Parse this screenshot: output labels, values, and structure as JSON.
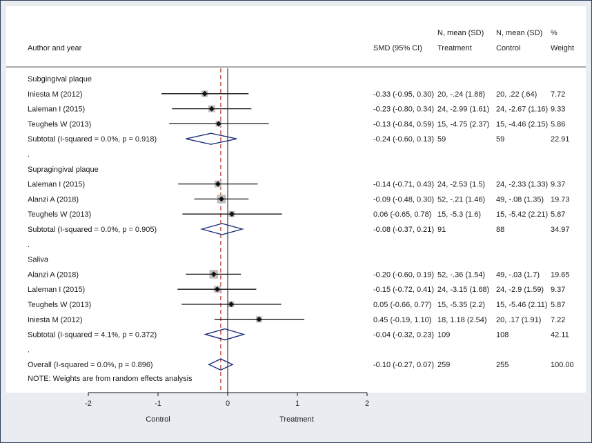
{
  "header": {
    "author_col": "Author and year",
    "smd_col": "SMD (95% CI)",
    "treat_top": "N, mean (SD)",
    "treat_bottom": "Treatment",
    "ctrl_top": "N, mean (SD)",
    "ctrl_bottom": "Control",
    "weight_top": "%",
    "weight_bottom": "Weight"
  },
  "chart_data": {
    "type": "forest",
    "measure": "SMD",
    "xlim": [
      -2,
      2
    ],
    "xticks": [
      "-2",
      "-1",
      "0",
      "1",
      "2"
    ],
    "xtick_values": [
      -2,
      -1,
      0,
      1,
      2
    ],
    "overall_effect_line": -0.1,
    "xlabel_left": "Control",
    "xlabel_right": "Treatment",
    "rows": [
      {
        "kind": "group",
        "label": "Subgingival plaque"
      },
      {
        "kind": "study",
        "label": "Iniesta M (2012)",
        "smd": -0.33,
        "lo": -0.95,
        "hi": 0.3,
        "ci_text": "-0.33 (-0.95, 0.30)",
        "treat": "20, -.24 (1.88)",
        "ctrl": "20, .22 (.64)",
        "weight": "7.72"
      },
      {
        "kind": "study",
        "label": "Laleman I (2015)",
        "smd": -0.23,
        "lo": -0.8,
        "hi": 0.34,
        "ci_text": "-0.23 (-0.80, 0.34)",
        "treat": "24, -2.99 (1.61)",
        "ctrl": "24, -2.67 (1.16)",
        "weight": "9.33"
      },
      {
        "kind": "study",
        "label": "Teughels W (2013)",
        "smd": -0.13,
        "lo": -0.84,
        "hi": 0.59,
        "ci_text": "-0.13 (-0.84, 0.59)",
        "treat": "15, -4.75 (2.37)",
        "ctrl": "15, -4.46 (2.15)",
        "weight": "5.86"
      },
      {
        "kind": "subtotal",
        "label": "Subtotal  (I-squared = 0.0%, p = 0.918)",
        "smd": -0.24,
        "lo": -0.6,
        "hi": 0.13,
        "ci_text": "-0.24 (-0.60, 0.13)",
        "treat": "59",
        "ctrl": "59",
        "weight": "22.91"
      },
      {
        "kind": "dot",
        "label": "."
      },
      {
        "kind": "group",
        "label": "Supragingival plaque"
      },
      {
        "kind": "study",
        "label": "Laleman I (2015)",
        "smd": -0.14,
        "lo": -0.71,
        "hi": 0.43,
        "ci_text": "-0.14 (-0.71, 0.43)",
        "treat": "24, -2.53 (1.5)",
        "ctrl": "24, -2.33 (1.33)",
        "weight": "9.37"
      },
      {
        "kind": "study",
        "label": "Alanzi A (2018)",
        "smd": -0.09,
        "lo": -0.48,
        "hi": 0.3,
        "ci_text": "-0.09 (-0.48, 0.30)",
        "treat": "52, -.21 (1.46)",
        "ctrl": "49, -.08 (1.35)",
        "weight": "19.73"
      },
      {
        "kind": "study",
        "label": "Teughels W (2013)",
        "smd": 0.06,
        "lo": -0.65,
        "hi": 0.78,
        "ci_text": "0.06 (-0.65, 0.78)",
        "treat": "15, -5.3 (1.6)",
        "ctrl": "15, -5.42 (2.21)",
        "weight": "5.87"
      },
      {
        "kind": "subtotal",
        "label": "Subtotal  (I-squared = 0.0%, p = 0.905)",
        "smd": -0.08,
        "lo": -0.37,
        "hi": 0.21,
        "ci_text": "-0.08 (-0.37, 0.21)",
        "treat": "91",
        "ctrl": "88",
        "weight": "34.97"
      },
      {
        "kind": "dot",
        "label": "."
      },
      {
        "kind": "group",
        "label": "Saliva"
      },
      {
        "kind": "study",
        "label": "Alanzi A (2018)",
        "smd": -0.2,
        "lo": -0.6,
        "hi": 0.19,
        "ci_text": "-0.20 (-0.60, 0.19)",
        "treat": "52, -.36 (1.54)",
        "ctrl": "49, -.03 (1.7)",
        "weight": "19.65"
      },
      {
        "kind": "study",
        "label": "Laleman I (2015)",
        "smd": -0.15,
        "lo": -0.72,
        "hi": 0.41,
        "ci_text": "-0.15 (-0.72, 0.41)",
        "treat": "24, -3.15 (1.68)",
        "ctrl": "24, -2.9 (1.59)",
        "weight": "9.37"
      },
      {
        "kind": "study",
        "label": "Teughels W (2013)",
        "smd": 0.05,
        "lo": -0.66,
        "hi": 0.77,
        "ci_text": "0.05 (-0.66, 0.77)",
        "treat": "15, -5.35 (2.2)",
        "ctrl": "15, -5.46 (2.11)",
        "weight": "5.87"
      },
      {
        "kind": "study",
        "label": "Iniesta M (2012)",
        "smd": 0.45,
        "lo": -0.19,
        "hi": 1.1,
        "ci_text": "0.45 (-0.19, 1.10)",
        "treat": "18, 1.18 (2.54)",
        "ctrl": "20, .17 (1.91)",
        "weight": "7.22"
      },
      {
        "kind": "subtotal",
        "label": "Subtotal  (I-squared = 4.1%, p = 0.372)",
        "smd": -0.04,
        "lo": -0.32,
        "hi": 0.23,
        "ci_text": "-0.04 (-0.32, 0.23)",
        "treat": "109",
        "ctrl": "108",
        "weight": "42.11"
      },
      {
        "kind": "dot",
        "label": "."
      },
      {
        "kind": "overall",
        "label": "Overall  (I-squared = 0.0%, p = 0.896)",
        "smd": -0.1,
        "lo": -0.27,
        "hi": 0.07,
        "ci_text": "-0.10 (-0.27, 0.07)",
        "treat": "259",
        "ctrl": "255",
        "weight": "100.00"
      },
      {
        "kind": "note",
        "label": "NOTE: Weights are from random effects analysis"
      }
    ]
  }
}
